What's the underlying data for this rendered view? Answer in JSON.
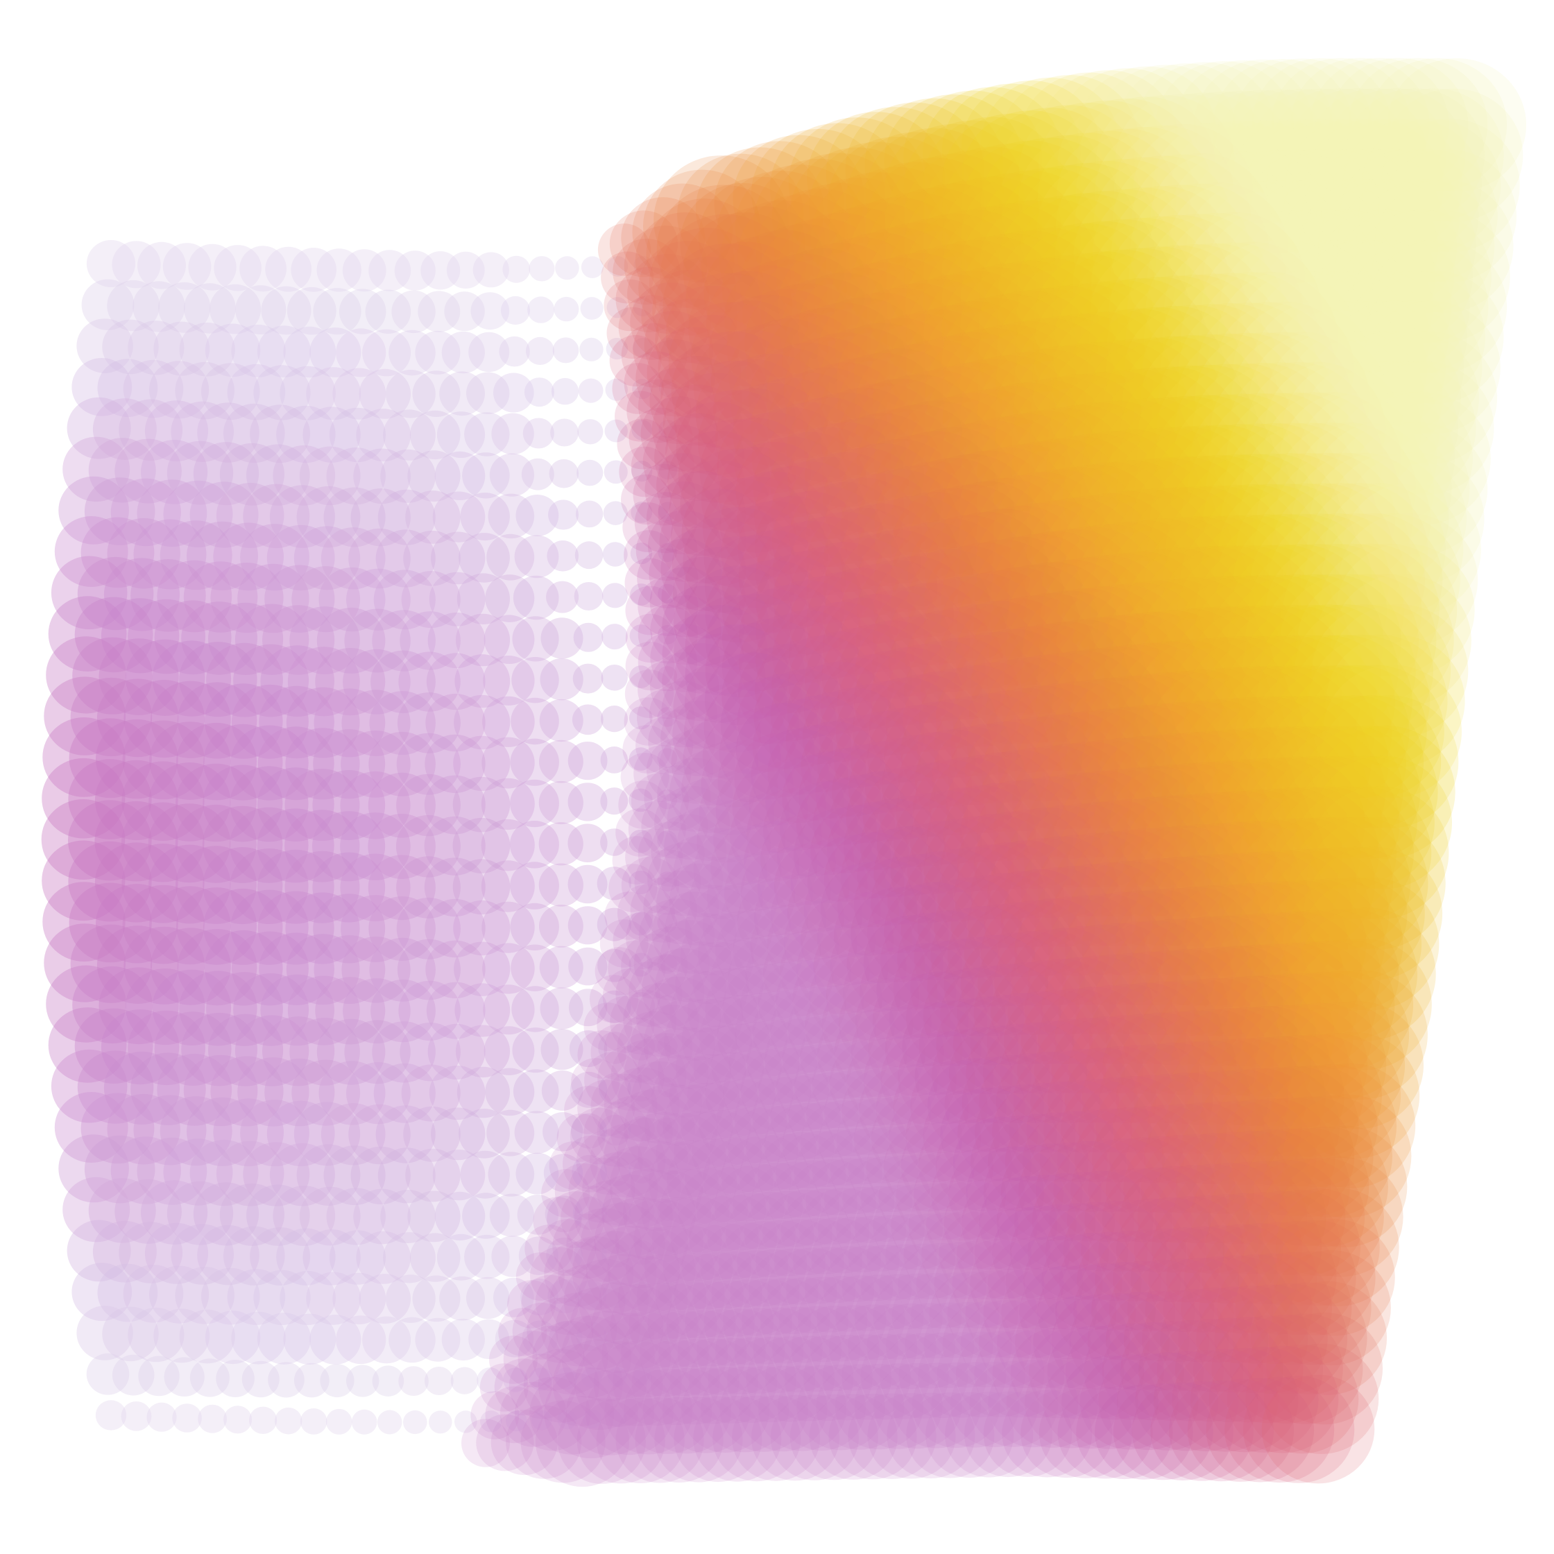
{
  "artwork": {
    "kind": "generative ellipse-grid field",
    "background": "#ffffff",
    "palette": [
      "#e8e4f2",
      "#d7c2e6",
      "#c986cc",
      "#c45fae",
      "#d9607a",
      "#ea8042",
      "#f0b02a",
      "#f1d623",
      "#f4f4b8"
    ],
    "grid": {
      "columns": 44,
      "rows": 44
    }
  }
}
